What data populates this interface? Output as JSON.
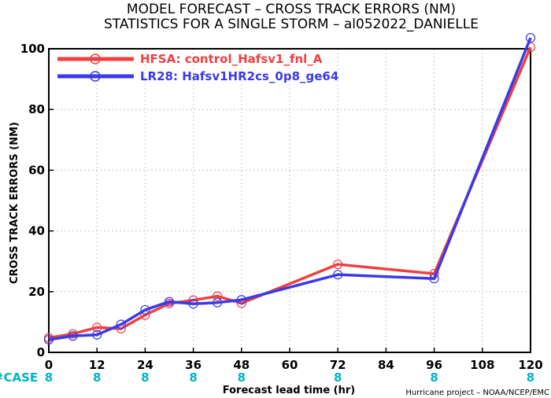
{
  "chart_data": {
    "type": "line",
    "title": "MODEL FORECAST – CROSS TRACK ERRORS (NM)",
    "subtitle": "STATISTICS FOR A SINGLE STORM – al052022_DANIELLE",
    "xlabel": "Forecast lead time (hr)",
    "ylabel": "CROSS TRACK ERRORS (NM)",
    "xlim": [
      0,
      120
    ],
    "ylim": [
      0,
      100
    ],
    "xticks": [
      0,
      12,
      24,
      36,
      48,
      60,
      72,
      84,
      96,
      108,
      120
    ],
    "yticks": [
      0,
      20,
      40,
      60,
      80,
      100
    ],
    "grid": true,
    "legend_position": "top-left",
    "case_label": "#CASE",
    "case_counts": [
      {
        "x": 0,
        "n": "8"
      },
      {
        "x": 12,
        "n": "8"
      },
      {
        "x": 24,
        "n": "8"
      },
      {
        "x": 36,
        "n": "8"
      },
      {
        "x": 48,
        "n": "8"
      },
      {
        "x": 72,
        "n": "8"
      },
      {
        "x": 96,
        "n": "8"
      },
      {
        "x": 120,
        "n": "8"
      }
    ],
    "credit": "Hurricane project – NOAA/NCEP/EMC",
    "series": [
      {
        "name": "HFSA: control_Hafsv1_fnl_A",
        "color": "#f04040",
        "x": [
          0,
          6,
          12,
          18,
          24,
          30,
          36,
          42,
          48,
          72,
          96,
          120
        ],
        "y": [
          4.8,
          6.1,
          8.2,
          7.8,
          12.3,
          16.1,
          17.2,
          18.5,
          16.2,
          29.0,
          25.9,
          100.5
        ]
      },
      {
        "name": "LR28: Hafsv1HR2cs_0p8_ge64",
        "color": "#3a3ae8",
        "x": [
          0,
          6,
          12,
          18,
          24,
          30,
          36,
          42,
          48,
          72,
          96,
          120
        ],
        "y": [
          4.2,
          5.4,
          5.8,
          9.2,
          14.0,
          16.7,
          16.0,
          16.4,
          17.3,
          25.6,
          24.3,
          103.6
        ]
      }
    ]
  }
}
